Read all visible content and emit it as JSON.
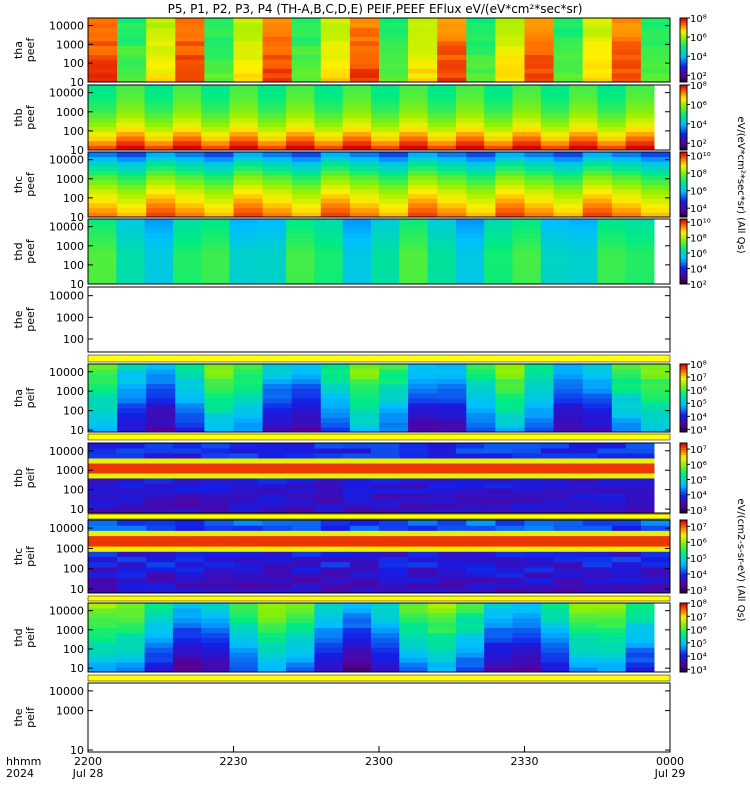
{
  "chart_data": {
    "type": "heatmap",
    "title": "P5, P1, P2, P3, P4 (TH-A,B,C,D,E) PEIF,PEEF EFlux eV/(eV*cm²*sec*sr)",
    "x_ticks": [
      "2200",
      "2230",
      "2300",
      "2330",
      "0000"
    ],
    "x_dates": [
      "Jul 28",
      "Jul 29"
    ],
    "x_corner_labels": [
      "hhmm",
      "2024"
    ],
    "x_range": [
      "2024-07-28 22:00",
      "2024-07-29 00:00"
    ],
    "colormap": "rainbow (purple-blue-cyan-green-yellow-red)",
    "colorbar_unit_texts": [
      "eV/(eV*cm²*sec*sr) (All Qs)",
      "eV/(cm2-s-sr-eV) (All Qs)"
    ],
    "panels": [
      {
        "id": "tha_peef",
        "ylabel": [
          "tha",
          "peef"
        ],
        "yticks": [
          "10",
          "100",
          "1000",
          "10000"
        ],
        "ylog": [
          1,
          4.4
        ],
        "cbar_ticks": [
          "10²",
          "10⁴",
          "10⁶",
          "10⁸"
        ],
        "cbar_log": [
          1.3,
          8
        ]
      },
      {
        "id": "thb_peef",
        "ylabel": [
          "thb",
          "peef"
        ],
        "yticks": [
          "10",
          "100",
          "1000",
          "10000"
        ],
        "ylog": [
          1,
          4.4
        ],
        "cbar_ticks": [
          "10²",
          "10⁴",
          "10⁶",
          "10⁸"
        ],
        "cbar_log": [
          1.3,
          8
        ]
      },
      {
        "id": "thc_peef",
        "ylabel": [
          "thc",
          "peef"
        ],
        "yticks": [
          "10",
          "100",
          "1000",
          "10000"
        ],
        "ylog": [
          1,
          4.4
        ],
        "cbar_ticks": [
          "10⁴",
          "10⁶",
          "10⁸",
          "10¹⁰"
        ],
        "cbar_log": [
          3,
          10.4
        ]
      },
      {
        "id": "thd_peef",
        "ylabel": [
          "thd",
          "peef"
        ],
        "yticks": [
          "10",
          "100",
          "1000",
          "10000"
        ],
        "ylog": [
          1,
          4.4
        ],
        "cbar_ticks": [
          "10²",
          "10⁴",
          "10⁶",
          "10⁸",
          "10¹⁰"
        ],
        "cbar_log": [
          2,
          10.4
        ]
      },
      {
        "id": "the_peef",
        "ylabel": [
          "the",
          "peef"
        ],
        "yticks": [
          "100",
          "1000",
          "10000"
        ],
        "ylog": [
          1.4,
          4.4
        ],
        "cbar_ticks": [],
        "cbar_log": null
      },
      {
        "id": "tha_peif",
        "ylabel": [
          "tha",
          "peif"
        ],
        "yticks": [
          "10",
          "100",
          "1000",
          "10000"
        ],
        "ylog": [
          0.9,
          4.4
        ],
        "cbar_ticks": [
          "10³",
          "10⁴",
          "10⁵",
          "10⁶",
          "10⁷",
          "10⁸"
        ],
        "cbar_log": [
          2.8,
          8
        ]
      },
      {
        "id": "thb_peif",
        "ylabel": [
          "thb",
          "peif"
        ],
        "yticks": [
          "10",
          "100",
          "1000",
          "10000"
        ],
        "ylog": [
          0.8,
          4.4
        ],
        "cbar_ticks": [
          "10³",
          "10⁴",
          "10⁵",
          "10⁶",
          "10⁷"
        ],
        "cbar_log": [
          2.8,
          7.4
        ]
      },
      {
        "id": "thc_peif",
        "ylabel": [
          "thc",
          "peif"
        ],
        "yticks": [
          "10",
          "100",
          "1000",
          "10000"
        ],
        "ylog": [
          0.8,
          4.4
        ],
        "cbar_ticks": [
          "10³",
          "10⁴",
          "10⁵",
          "10⁶",
          "10⁷"
        ],
        "cbar_log": [
          2.8,
          7.4
        ]
      },
      {
        "id": "thd_peif",
        "ylabel": [
          "thd",
          "peif"
        ],
        "yticks": [
          "10",
          "100",
          "1000",
          "10000"
        ],
        "ylog": [
          0.8,
          4.4
        ],
        "cbar_ticks": [
          "10³",
          "10⁴",
          "10⁵",
          "10⁶",
          "10⁷",
          "10⁸"
        ],
        "cbar_log": [
          2.8,
          8
        ]
      },
      {
        "id": "the_peif",
        "ylabel": [
          "the",
          "peif"
        ],
        "yticks": [
          "10",
          "1000",
          "10000"
        ],
        "ylog": [
          0.9,
          4.4
        ],
        "cbar_ticks": [],
        "cbar_log": null
      }
    ]
  }
}
